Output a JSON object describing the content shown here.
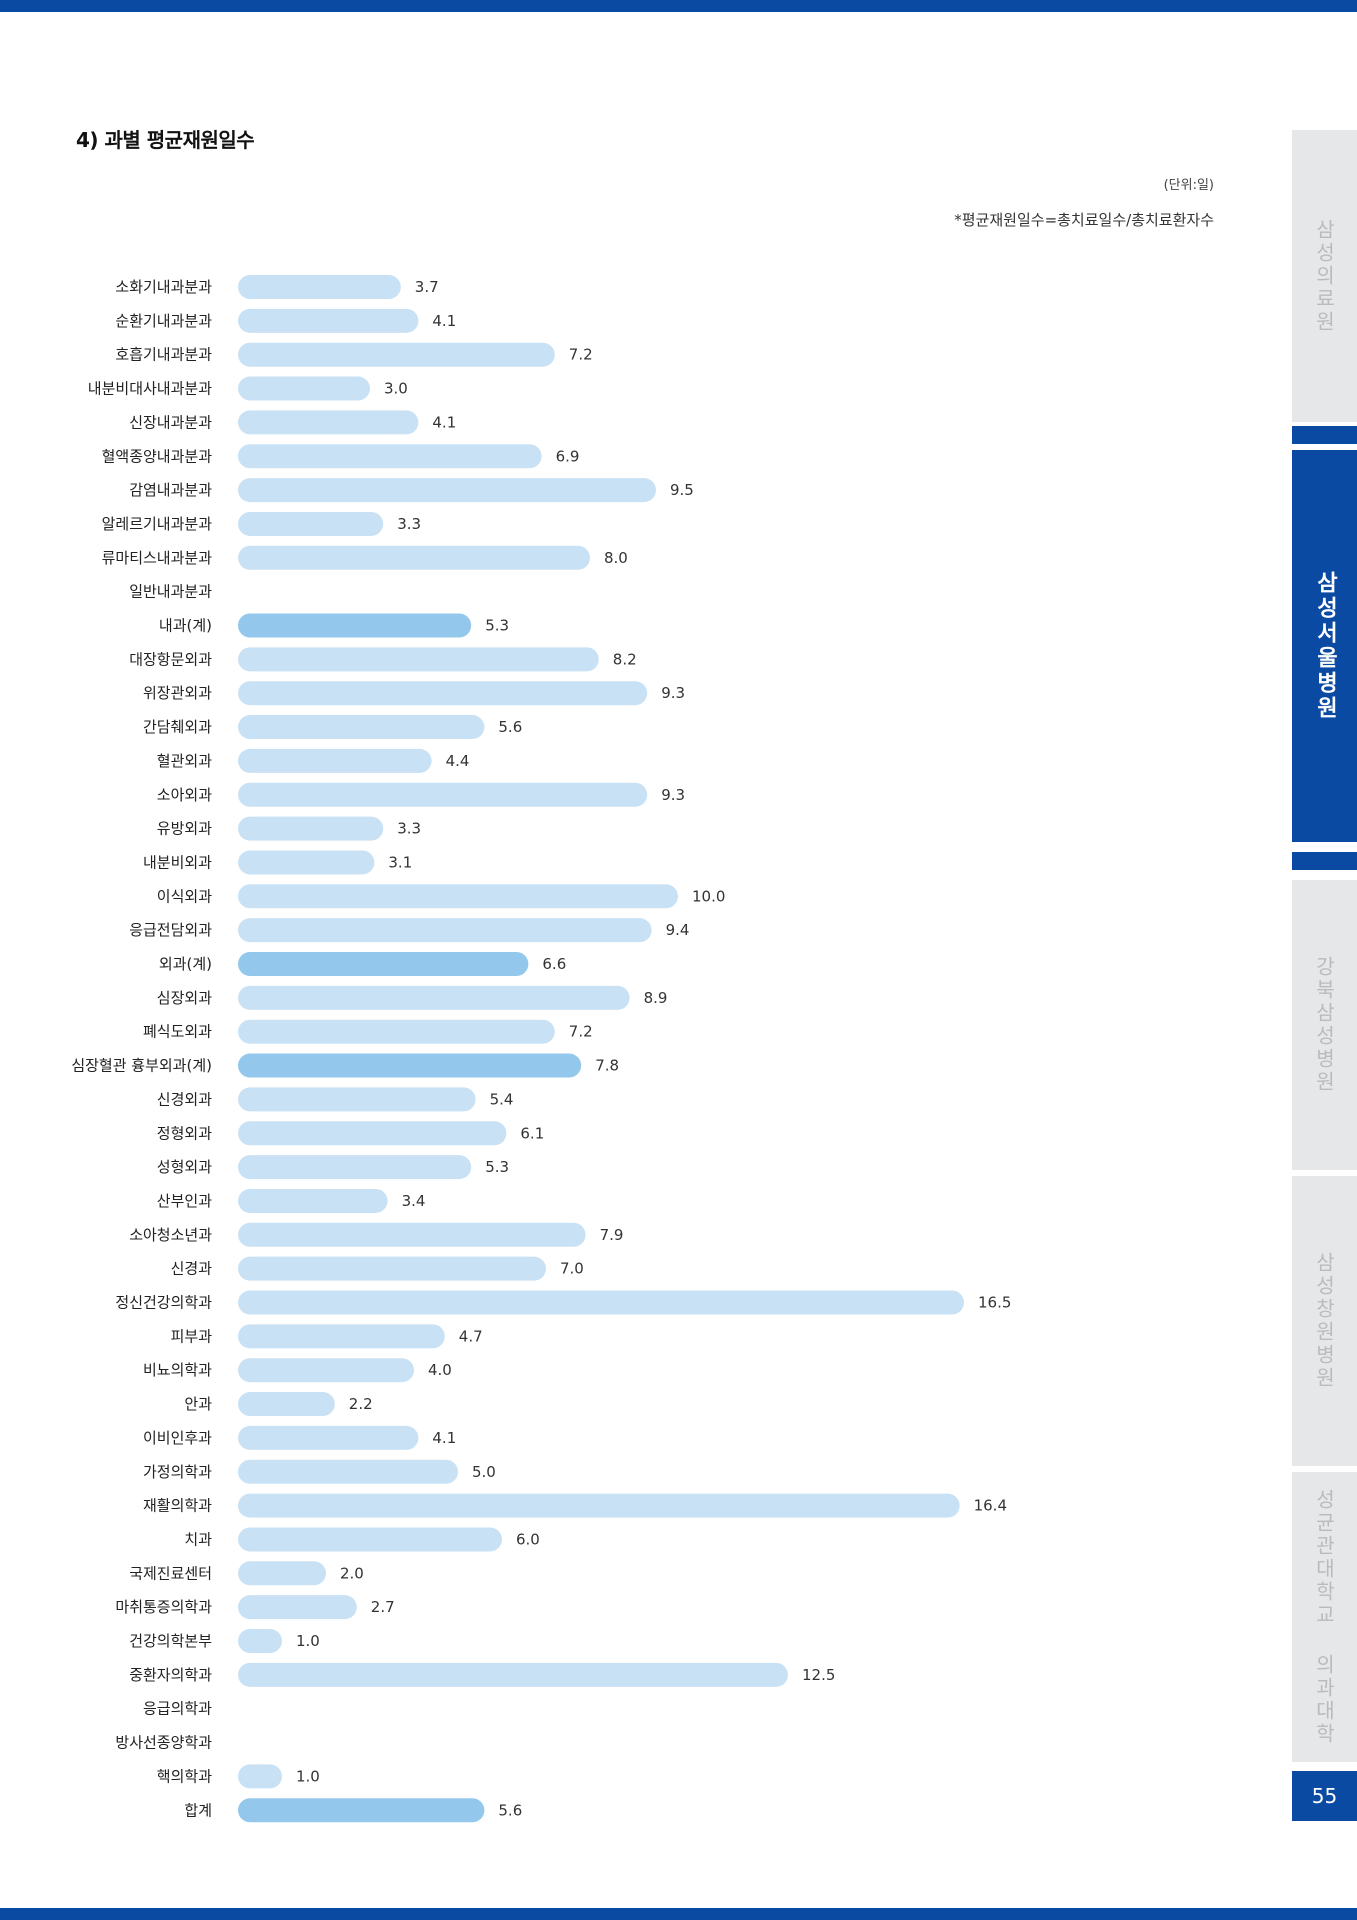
{
  "header": {
    "title": "4) 과별 평균재원일수",
    "unit": "(단위:일)",
    "note": "*평균재원일수=총치료일수/총치료환자수"
  },
  "side_nav": {
    "tabs": [
      "삼성의료원",
      "삼성서울병원",
      "강북삼성병원",
      "삼성창원병원",
      "성균관대학교 의과대학"
    ],
    "active_index": 1,
    "page_number": "55"
  },
  "colors": {
    "brand_blue": "#0b4aa2",
    "bar_light": "#c9e1f4",
    "bar_total": "#93c8ec",
    "tab_inactive": "#e6e7e9"
  },
  "chart_data": {
    "type": "bar",
    "orientation": "horizontal",
    "title": "4) 과별 평균재원일수",
    "unit": "(단위:일)",
    "xlim": [
      0,
      17
    ],
    "grid": false,
    "categories": [
      "소화기내과분과",
      "순환기내과분과",
      "호흡기내과분과",
      "내분비대사내과분과",
      "신장내과분과",
      "혈액종양내과분과",
      "감염내과분과",
      "알레르기내과분과",
      "류마티스내과분과",
      "일반내과분과",
      "내과(계)",
      "대장항문외과",
      "위장관외과",
      "간담췌외과",
      "혈관외과",
      "소아외과",
      "유방외과",
      "내분비외과",
      "이식외과",
      "응급전담외과",
      "외과(계)",
      "심장외과",
      "폐식도외과",
      "심장혈관 흉부외과(계)",
      "신경외과",
      "정형외과",
      "성형외과",
      "산부인과",
      "소아청소년과",
      "신경과",
      "정신건강의학과",
      "피부과",
      "비뇨의학과",
      "안과",
      "이비인후과",
      "가정의학과",
      "재활의학과",
      "치과",
      "국제진료센터",
      "마취통증의학과",
      "건강의학본부",
      "중환자의학과",
      "응급의학과",
      "방사선종양학과",
      "핵의학과",
      "합계"
    ],
    "values": [
      3.7,
      4.1,
      7.2,
      3.0,
      4.1,
      6.9,
      9.5,
      3.3,
      8.0,
      null,
      5.3,
      8.2,
      9.3,
      5.6,
      4.4,
      9.3,
      3.3,
      3.1,
      10.0,
      9.4,
      6.6,
      8.9,
      7.2,
      7.8,
      5.4,
      6.1,
      5.3,
      3.4,
      7.9,
      7.0,
      16.5,
      4.7,
      4.0,
      2.2,
      4.1,
      5.0,
      16.4,
      6.0,
      2.0,
      2.7,
      1.0,
      12.5,
      null,
      null,
      1.0,
      5.6
    ],
    "value_labels": [
      "3.7",
      "4.1",
      "7.2",
      "3.0",
      "4.1",
      "6.9",
      "9.5",
      "3.3",
      "8.0",
      "",
      "5.3",
      "8.2",
      "9.3",
      "5.6",
      "4.4",
      "9.3",
      "3.3",
      "3.1",
      "10.0",
      "9.4",
      "6.6",
      "8.9",
      "7.2",
      "7.8",
      "5.4",
      "6.1",
      "5.3",
      "3.4",
      "7.9",
      "7.0",
      "16.5",
      "4.7",
      "4.0",
      "2.2",
      "4.1",
      "5.0",
      "16.4",
      "6.0",
      "2.0",
      "2.7",
      "1.0",
      "12.5",
      "",
      "",
      "1.0",
      "5.6"
    ],
    "subtotal_categories": [
      "내과(계)",
      "외과(계)",
      "심장혈관 흉부외과(계)",
      "합계"
    ]
  }
}
